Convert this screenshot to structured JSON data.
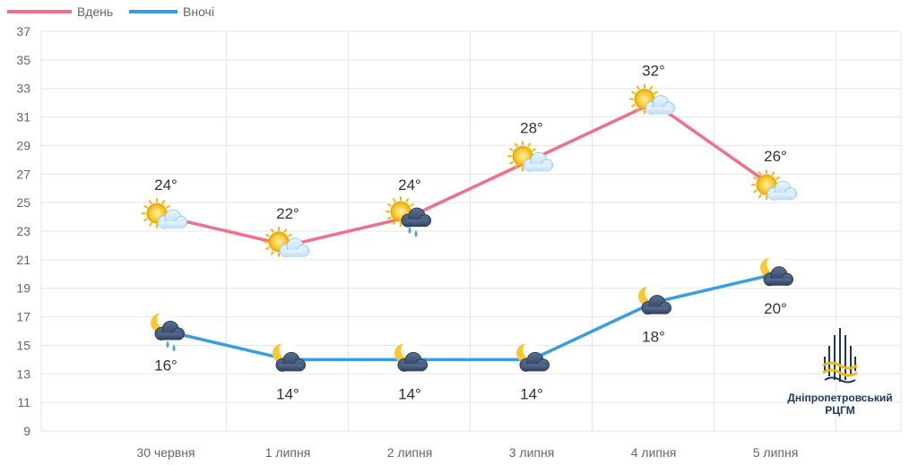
{
  "chart_data": {
    "type": "line",
    "categories": [
      "30 червня",
      "1 липня",
      "2 липня",
      "3 липня",
      "4 липня",
      "5 липня"
    ],
    "series": [
      {
        "name": "Вдень",
        "color": "#f0708a",
        "values": [
          24,
          22,
          24,
          28,
          32,
          26
        ],
        "labels": [
          "24°",
          "22°",
          "24°",
          "28°",
          "32°",
          "26°"
        ],
        "icons": [
          "sun-cloud",
          "sun-cloud",
          "sun-rain",
          "sun-cloud",
          "sun-cloud",
          "sun-cloud"
        ],
        "label_position": "above"
      },
      {
        "name": "Вночі",
        "color": "#3a9ede",
        "values": [
          16,
          14,
          14,
          14,
          18,
          20
        ],
        "labels": [
          "16°",
          "14°",
          "14°",
          "14°",
          "18°",
          "20°"
        ],
        "icons": [
          "moon-rain",
          "moon-cloud",
          "moon-cloud",
          "moon-cloud",
          "moon-cloud",
          "moon-cloud"
        ],
        "label_position": "below"
      }
    ],
    "ylim": [
      9,
      37
    ],
    "yticks": [
      9,
      11,
      13,
      15,
      17,
      19,
      21,
      23,
      25,
      27,
      29,
      31,
      33,
      35,
      37
    ],
    "grid": true,
    "legend": "top-left"
  },
  "logo": {
    "org_line1": "Дніпропетровський",
    "org_line2": "РЦГМ",
    "colors": [
      "#1a3a66",
      "#f2b705"
    ]
  }
}
